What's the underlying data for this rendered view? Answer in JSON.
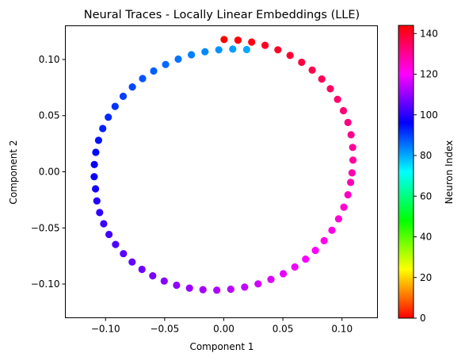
{
  "chart_data": {
    "type": "scatter",
    "title": "Neural Traces - Locally Linear Embeddings (LLE)",
    "xlabel": "Component 1",
    "ylabel": "Component 2",
    "xlim": [
      -0.134,
      0.13
    ],
    "ylim": [
      -0.13,
      0.13
    ],
    "xticks": [
      -0.1,
      -0.05,
      0.0,
      0.05,
      0.1
    ],
    "xtick_labels": [
      "−0.10",
      "−0.05",
      "0.00",
      "0.05",
      "0.10"
    ],
    "yticks": [
      -0.1,
      -0.05,
      0.0,
      0.05,
      0.1
    ],
    "ytick_labels": [
      "−0.10",
      "−0.05",
      "0.00",
      "0.05",
      "0.10"
    ],
    "grid": false,
    "colormap": "hsv",
    "colorbar": {
      "label": "Neuron Index",
      "range": [
        0,
        144
      ],
      "ticks": [
        0,
        20,
        40,
        60,
        80,
        100,
        120,
        140
      ],
      "tick_labels": [
        "0",
        "20",
        "40",
        "60",
        "80",
        "100",
        "120",
        "140"
      ]
    },
    "marker_color_index_range": [
      80,
      144
    ],
    "points": [
      {
        "x": 0.0003,
        "y": 0.1178
      },
      {
        "x": 0.012,
        "y": 0.1172
      },
      {
        "x": 0.0236,
        "y": 0.1155
      },
      {
        "x": 0.0349,
        "y": 0.1126
      },
      {
        "x": 0.0458,
        "y": 0.1086
      },
      {
        "x": 0.0561,
        "y": 0.1036
      },
      {
        "x": 0.0659,
        "y": 0.0975
      },
      {
        "x": 0.0748,
        "y": 0.0905
      },
      {
        "x": 0.0829,
        "y": 0.0826
      },
      {
        "x": 0.0901,
        "y": 0.0739
      },
      {
        "x": 0.0962,
        "y": 0.0645
      },
      {
        "x": 0.1012,
        "y": 0.0544
      },
      {
        "x": 0.105,
        "y": 0.0439
      },
      {
        "x": 0.1077,
        "y": 0.0329
      },
      {
        "x": 0.109,
        "y": 0.0217
      },
      {
        "x": 0.1093,
        "y": 0.0104
      },
      {
        "x": 0.1085,
        "y": -0.001
      },
      {
        "x": 0.1073,
        "y": -0.0095
      },
      {
        "x": 0.105,
        "y": -0.0205
      },
      {
        "x": 0.1016,
        "y": -0.0315
      },
      {
        "x": 0.0971,
        "y": -0.042
      },
      {
        "x": 0.0915,
        "y": -0.0521
      },
      {
        "x": 0.0849,
        "y": -0.0614
      },
      {
        "x": 0.0775,
        "y": -0.07
      },
      {
        "x": 0.0692,
        "y": -0.0778
      },
      {
        "x": 0.0601,
        "y": -0.0848
      },
      {
        "x": 0.0503,
        "y": -0.0908
      },
      {
        "x": 0.0399,
        "y": -0.0958
      },
      {
        "x": 0.029,
        "y": -0.0998
      },
      {
        "x": 0.0176,
        "y": -0.1027
      },
      {
        "x": 0.0059,
        "y": -0.1046
      },
      {
        "x": -0.0059,
        "y": -0.1054
      },
      {
        "x": -0.0176,
        "y": -0.105
      },
      {
        "x": -0.029,
        "y": -0.1036
      },
      {
        "x": -0.0399,
        "y": -0.101
      },
      {
        "x": -0.0504,
        "y": -0.0973
      },
      {
        "x": -0.0601,
        "y": -0.0926
      },
      {
        "x": -0.0692,
        "y": -0.0869
      },
      {
        "x": -0.0775,
        "y": -0.0803
      },
      {
        "x": -0.0849,
        "y": -0.0729
      },
      {
        "x": -0.0915,
        "y": -0.0647
      },
      {
        "x": -0.0971,
        "y": -0.0558
      },
      {
        "x": -0.1016,
        "y": -0.0463
      },
      {
        "x": -0.105,
        "y": -0.0363
      },
      {
        "x": -0.1073,
        "y": -0.0259
      },
      {
        "x": -0.1085,
        "y": -0.0152
      },
      {
        "x": -0.1096,
        "y": -0.0044
      },
      {
        "x": -0.1095,
        "y": 0.0064
      },
      {
        "x": -0.1083,
        "y": 0.0173
      },
      {
        "x": -0.1059,
        "y": 0.028
      },
      {
        "x": -0.1024,
        "y": 0.0385
      },
      {
        "x": -0.0977,
        "y": 0.0486
      },
      {
        "x": -0.0919,
        "y": 0.0582
      },
      {
        "x": -0.0851,
        "y": 0.0672
      },
      {
        "x": -0.0773,
        "y": 0.0755
      },
      {
        "x": -0.0687,
        "y": 0.083
      },
      {
        "x": -0.0593,
        "y": 0.0897
      },
      {
        "x": -0.0492,
        "y": 0.0955
      },
      {
        "x": -0.0385,
        "y": 0.1003
      },
      {
        "x": -0.0274,
        "y": 0.1042
      },
      {
        "x": -0.0159,
        "y": 0.1069
      },
      {
        "x": -0.0042,
        "y": 0.1086
      },
      {
        "x": 0.0076,
        "y": 0.1092
      },
      {
        "x": 0.0194,
        "y": 0.1088
      }
    ]
  }
}
